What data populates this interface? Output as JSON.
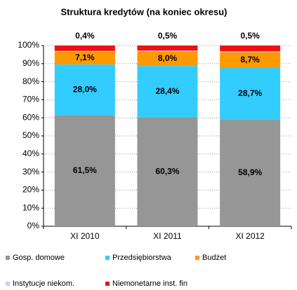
{
  "chart_data": {
    "type": "stacked_bar",
    "title": "Struktura kredytów (na koniec okresu)",
    "categories": [
      "XI 2010",
      "XI 2011",
      "XI 2012"
    ],
    "series": [
      {
        "name": "Gosp. domowe",
        "color": "#969696",
        "label_color": "#ffffff",
        "values": [
          61.5,
          60.3,
          58.9
        ],
        "value_labels": [
          "61,5%",
          "60,3%",
          "58,9%"
        ]
      },
      {
        "name": "Przedsiębiorstwa",
        "color": "#33ccff",
        "label_color": "#222222",
        "values": [
          28.0,
          28.4,
          28.7
        ],
        "value_labels": [
          "28,0%",
          "28,4%",
          "28,7%"
        ]
      },
      {
        "name": "Budżet",
        "color": "#ff9900",
        "label_color": "#222222",
        "values": [
          7.1,
          8.0,
          8.7
        ],
        "value_labels": [
          "7,1%",
          "8,0%",
          "8,7%"
        ]
      },
      {
        "name": "Instytucje niekom.",
        "color": "#ccccff",
        "label_color": "#000000",
        "values": [
          0.4,
          0.5,
          0.5
        ],
        "value_labels": [
          "0,4%",
          "0,5%",
          "0,5%"
        ]
      },
      {
        "name": "Niemonetarne inst. fin",
        "color": "#ee1111",
        "values": [
          3.0,
          2.8,
          3.2
        ]
      }
    ],
    "ylim": [
      0,
      100
    ],
    "yticks": [
      {
        "value": 0,
        "label": "0%"
      },
      {
        "value": 10,
        "label": "10%"
      },
      {
        "value": 20,
        "label": "20%"
      },
      {
        "value": 30,
        "label": "30%"
      },
      {
        "value": 40,
        "label": "40%"
      },
      {
        "value": 50,
        "label": "50%"
      },
      {
        "value": 60,
        "label": "60%"
      },
      {
        "value": 70,
        "label": "70%"
      },
      {
        "value": 80,
        "label": "80%"
      },
      {
        "value": 90,
        "label": "90%"
      },
      {
        "value": 100,
        "label": "100%"
      }
    ],
    "grid": true
  }
}
